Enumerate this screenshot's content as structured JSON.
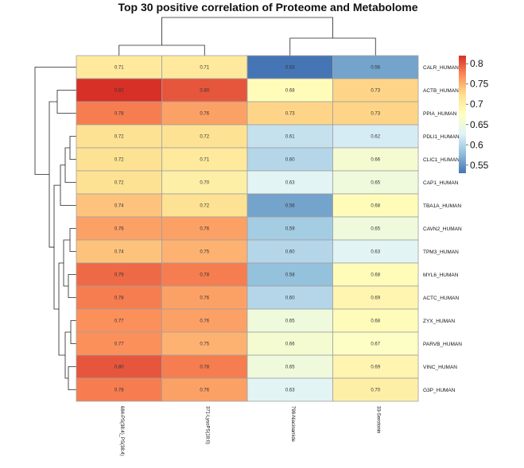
{
  "chart_data": {
    "type": "heatmap",
    "title": "Top 30 positive correlation of Proteome and Metabolome",
    "columns": [
      "684-PS(38:4)_PS(38:4)",
      "371-LysoPS(18:0)",
      "798-Niacinamide",
      "33-Serotonin"
    ],
    "rows": [
      "CALR_HUMAN",
      "ACTB_HUMAN",
      "PPIA_HUMAN",
      "PDLI1_HUMAN",
      "CLIC1_HUMAN",
      "CAP1_HUMAN",
      "TBA1A_HUMAN",
      "CAVN2_HUMAN",
      "TPM3_HUMAN",
      "MYL6_HUMAN",
      "ACTC_HUMAN",
      "ZYX_HUMAN",
      "PARVB_HUMAN",
      "VINC_HUMAN",
      "G3P_HUMAN"
    ],
    "values": [
      [
        0.71,
        0.71,
        0.53,
        0.56
      ],
      [
        0.82,
        0.8,
        0.68,
        0.73
      ],
      [
        0.78,
        0.76,
        0.73,
        0.73
      ],
      [
        0.72,
        0.72,
        0.61,
        0.62
      ],
      [
        0.72,
        0.71,
        0.6,
        0.66
      ],
      [
        0.72,
        0.7,
        0.63,
        0.65
      ],
      [
        0.74,
        0.72,
        0.56,
        0.68
      ],
      [
        0.76,
        0.76,
        0.59,
        0.65
      ],
      [
        0.74,
        0.75,
        0.6,
        0.63
      ],
      [
        0.79,
        0.78,
        0.58,
        0.68
      ],
      [
        0.78,
        0.76,
        0.6,
        0.69
      ],
      [
        0.77,
        0.76,
        0.65,
        0.68
      ],
      [
        0.77,
        0.75,
        0.66,
        0.67
      ],
      [
        0.8,
        0.78,
        0.65,
        0.69
      ],
      [
        0.78,
        0.76,
        0.63,
        0.7
      ]
    ],
    "legend": {
      "ticks": [
        "0.8",
        "0.75",
        "0.7",
        "0.65",
        "0.6",
        "0.55"
      ],
      "tick_values": [
        0.8,
        0.75,
        0.7,
        0.65,
        0.6,
        0.55
      ],
      "range": [
        0.53,
        0.82
      ],
      "colors": [
        "#4575b4",
        "#91bfdb",
        "#e0f3f8",
        "#ffffbf",
        "#fee090",
        "#fc8d59",
        "#d73027"
      ]
    },
    "grid": true
  }
}
